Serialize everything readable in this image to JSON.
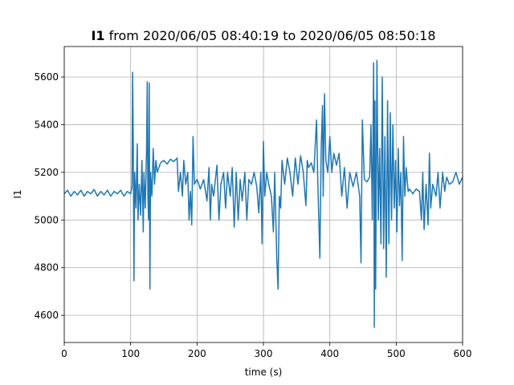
{
  "chart_data": {
    "type": "line",
    "title_parts": [
      "I1",
      "from 2020/06/05 08:40:19 to 2020/06/05 08:50:18"
    ],
    "x_label": "time (s)",
    "y_label": "I1",
    "xlim": [
      0,
      600
    ],
    "ylim": [
      4486,
      5728
    ],
    "xticks": [
      0,
      100,
      200,
      300,
      400,
      500,
      600
    ],
    "yticks": [
      4600,
      4800,
      5000,
      5200,
      5400,
      5600
    ],
    "grid": true,
    "series": [
      {
        "name": "I1",
        "color": "#1f77b4",
        "x": [
          0,
          5,
          10,
          15,
          20,
          25,
          30,
          35,
          40,
          45,
          50,
          55,
          60,
          65,
          70,
          75,
          80,
          85,
          90,
          95,
          100,
          102,
          103,
          104,
          105,
          106,
          108,
          110,
          111,
          113,
          115,
          117,
          119,
          120,
          122,
          124,
          125,
          126,
          127,
          128,
          129,
          130,
          132,
          134,
          136,
          138,
          140,
          145,
          150,
          155,
          160,
          165,
          170,
          172,
          175,
          178,
          180,
          183,
          186,
          188,
          190,
          192,
          194,
          196,
          200,
          205,
          210,
          215,
          218,
          220,
          222,
          225,
          230,
          233,
          236,
          240,
          243,
          246,
          250,
          253,
          256,
          259,
          262,
          265,
          268,
          272,
          275,
          278,
          282,
          286,
          290,
          293,
          296,
          298,
          300,
          302,
          305,
          308,
          312,
          315,
          317,
          320,
          322,
          324,
          326,
          328,
          332,
          336,
          340,
          344,
          348,
          352,
          356,
          360,
          364,
          366,
          368,
          372,
          376,
          380,
          382,
          385,
          387,
          389,
          390,
          392,
          394,
          397,
          400,
          403,
          406,
          410,
          414,
          418,
          422,
          426,
          430,
          435,
          440,
          445,
          447,
          449,
          452,
          456,
          460,
          462,
          464,
          466,
          467,
          468,
          469,
          471,
          473,
          475,
          477,
          479,
          481,
          483,
          485,
          487,
          489,
          491,
          493,
          495,
          497,
          499,
          501,
          503,
          505,
          507,
          509,
          511,
          513,
          515,
          518,
          520,
          525,
          530,
          535,
          538,
          540,
          542,
          545,
          548,
          550,
          552,
          555,
          560,
          563,
          566,
          570,
          573,
          576,
          580,
          585,
          590,
          595,
          600
        ],
        "values": [
          5110,
          5125,
          5100,
          5120,
          5105,
          5125,
          5100,
          5120,
          5110,
          5128,
          5100,
          5120,
          5105,
          5125,
          5100,
          5120,
          5110,
          5125,
          5100,
          5120,
          5110,
          5140,
          5620,
          5300,
          4745,
          5200,
          5050,
          5320,
          5000,
          5150,
          5020,
          5250,
          4950,
          5200,
          5050,
          5300,
          5580,
          5100,
          5000,
          5575,
          4710,
          5200,
          5100,
          5300,
          5150,
          5250,
          5200,
          5240,
          5250,
          5235,
          5255,
          5245,
          5260,
          5120,
          5200,
          5100,
          5250,
          5150,
          5200,
          5000,
          5120,
          4980,
          5350,
          5150,
          5170,
          5130,
          5170,
          5080,
          5220,
          5000,
          5150,
          5100,
          5230,
          5000,
          5150,
          5200,
          5050,
          5200,
          5100,
          5220,
          4970,
          5200,
          5000,
          5170,
          5080,
          5200,
          5000,
          5170,
          5150,
          5200,
          5140,
          5030,
          5200,
          4900,
          5330,
          5100,
          5200,
          5150,
          5100,
          4950,
          5200,
          4850,
          4710,
          5100,
          5050,
          5250,
          5150,
          5260,
          5200,
          5100,
          5260,
          5150,
          5270,
          5200,
          5060,
          5250,
          5220,
          5240,
          5200,
          5420,
          5150,
          4840,
          5300,
          5480,
          5100,
          5530,
          5250,
          5200,
          5350,
          5200,
          5280,
          5230,
          5280,
          5100,
          5220,
          5050,
          5200,
          5140,
          5200,
          5100,
          4820,
          5420,
          5170,
          5160,
          5180,
          5400,
          5000,
          5660,
          4550,
          5500,
          4710,
          5670,
          5000,
          5300,
          4900,
          5600,
          4880,
          5350,
          4760,
          5500,
          4900,
          5450,
          5000,
          5400,
          5050,
          5250,
          4950,
          5300,
          5060,
          5200,
          4830,
          5350,
          5100,
          5220,
          5120,
          5130,
          5110,
          5130,
          5120,
          5000,
          5200,
          4960,
          5150,
          4980,
          5280,
          5050,
          5150,
          5100,
          5200,
          5050,
          5200,
          5120,
          5180,
          5150,
          5160,
          5200,
          5150,
          5180
        ]
      }
    ]
  }
}
